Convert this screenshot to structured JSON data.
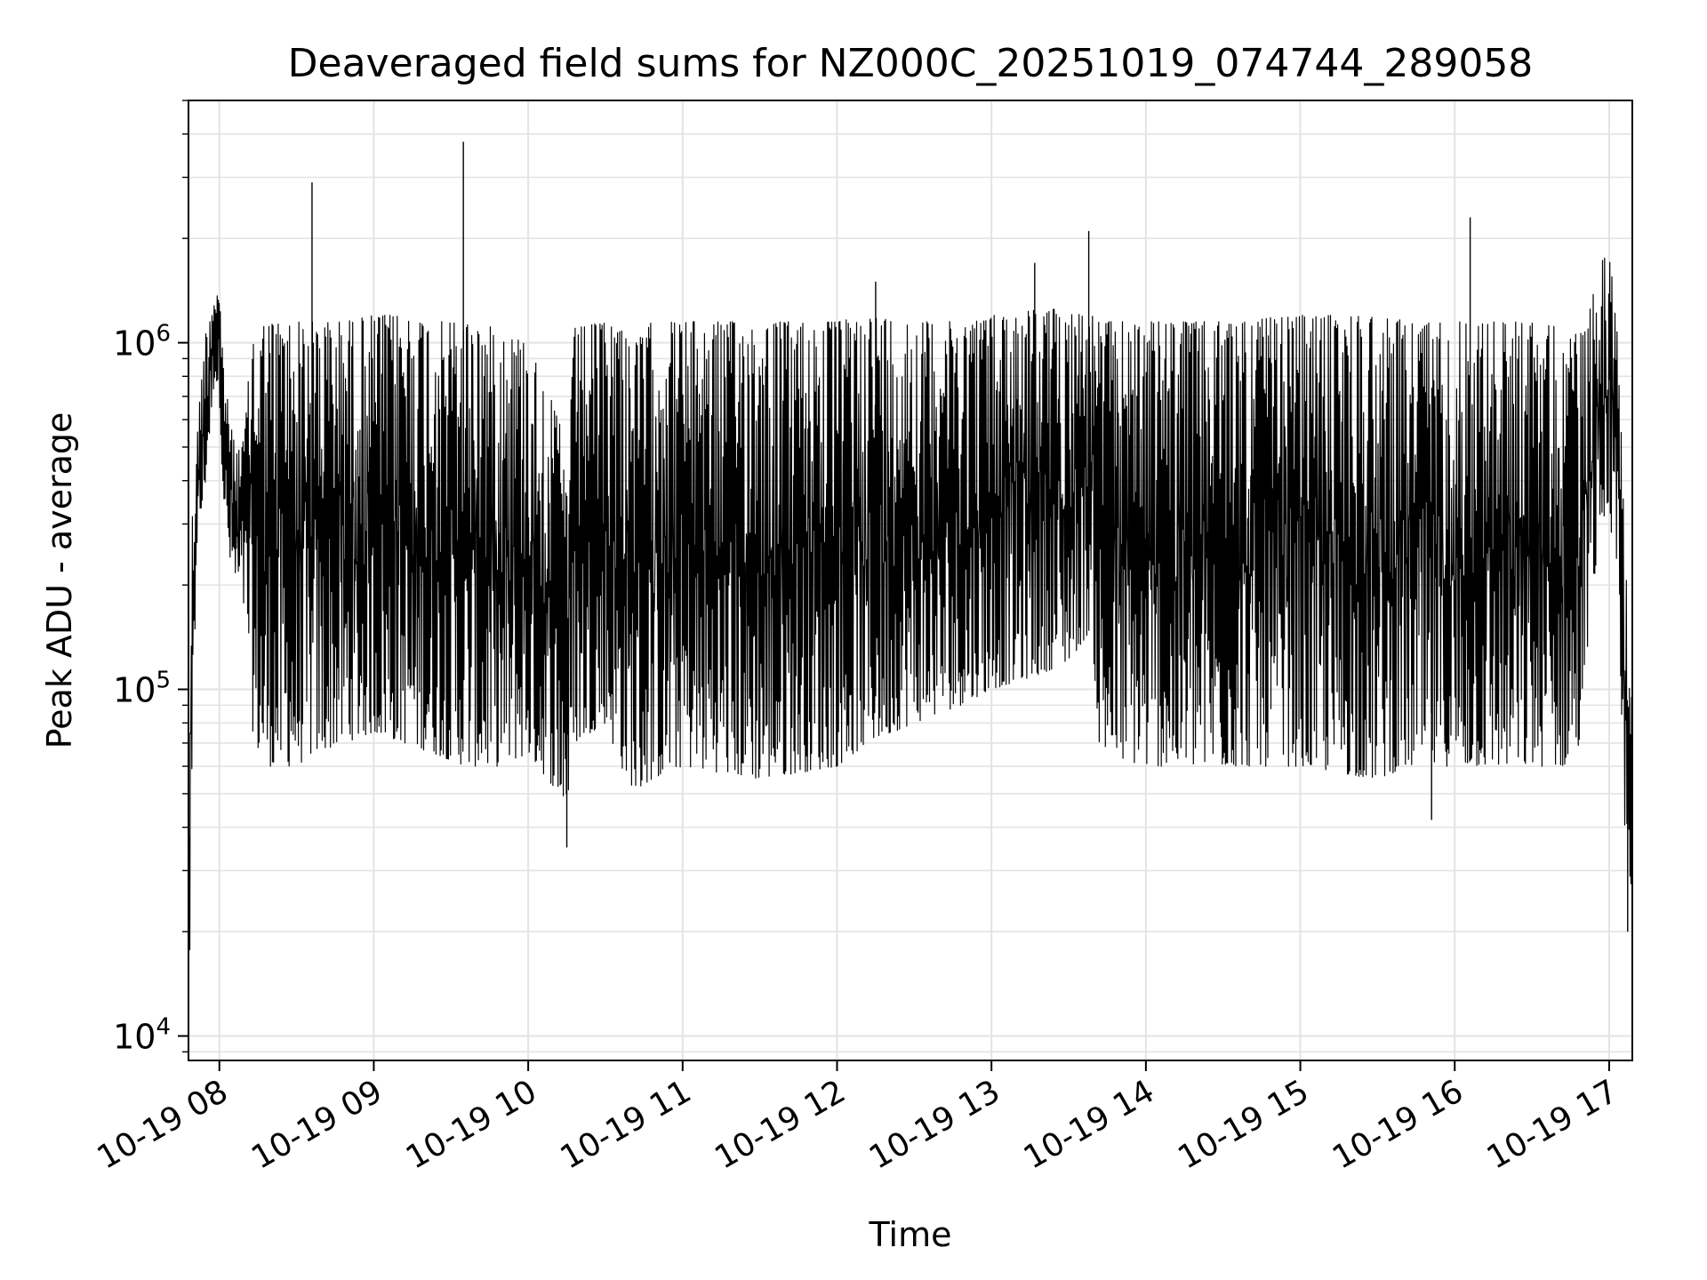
{
  "chart_data": {
    "type": "line",
    "title": "Deaveraged field sums for NZ000C_20251019_074744_289058",
    "xlabel": "Time",
    "ylabel": "Peak ADU - average",
    "yscale": "log",
    "ylim": [
      8500,
      5000000
    ],
    "xlim_hours": [
      7.8,
      17.15
    ],
    "grid": true,
    "line_color": "#000000",
    "grid_color": "#e3e3e3",
    "x_ticks": [
      {
        "hour": 8,
        "label": "10-19 08"
      },
      {
        "hour": 9,
        "label": "10-19 09"
      },
      {
        "hour": 10,
        "label": "10-19 10"
      },
      {
        "hour": 11,
        "label": "10-19 11"
      },
      {
        "hour": 12,
        "label": "10-19 12"
      },
      {
        "hour": 13,
        "label": "10-19 13"
      },
      {
        "hour": 14,
        "label": "10-19 14"
      },
      {
        "hour": 15,
        "label": "10-19 15"
      },
      {
        "hour": 16,
        "label": "10-19 16"
      },
      {
        "hour": 17,
        "label": "10-19 17"
      }
    ],
    "y_ticks": [
      {
        "value": 10000,
        "base": "10",
        "exp": "4"
      },
      {
        "value": 100000,
        "base": "10",
        "exp": "5"
      },
      {
        "value": 1000000,
        "base": "10",
        "exp": "6"
      }
    ],
    "series": [
      {
        "name": "field sums",
        "envelope_hours": [
          7.8,
          7.82,
          7.85,
          7.9,
          7.93,
          7.97,
          8.0,
          8.02,
          8.05,
          8.1,
          8.15,
          8.2,
          8.22,
          8.3,
          8.5,
          8.6,
          8.8,
          9.0,
          9.2,
          9.4,
          9.6,
          9.8,
          10.0,
          10.2,
          10.25,
          10.3,
          10.5,
          10.6,
          10.7,
          10.8,
          11.0,
          11.5,
          12.0,
          12.2,
          12.5,
          12.8,
          13.0,
          13.3,
          13.5,
          13.65,
          13.7,
          14.0,
          14.5,
          15.0,
          15.5,
          15.7,
          16.0,
          16.5,
          16.7,
          16.8,
          16.85,
          16.9,
          16.95,
          17.0,
          17.05,
          17.1,
          17.15
        ],
        "envelope_low": [
          11000,
          28000,
          250000,
          350000,
          500000,
          800000,
          700000,
          400000,
          250000,
          200000,
          180000,
          120000,
          70000,
          60000,
          60000,
          65000,
          70000,
          75000,
          70000,
          65000,
          60000,
          60000,
          65000,
          50000,
          45000,
          70000,
          80000,
          60000,
          50000,
          55000,
          60000,
          55000,
          60000,
          70000,
          80000,
          90000,
          100000,
          110000,
          120000,
          150000,
          65000,
          60000,
          60000,
          60000,
          55000,
          60000,
          60000,
          60000,
          60000,
          65000,
          120000,
          200000,
          300000,
          350000,
          150000,
          40000,
          25000
        ],
        "envelope_high": [
          30000,
          300000,
          500000,
          1000000,
          1200000,
          1500000,
          1400000,
          1000000,
          700000,
          500000,
          500000,
          900000,
          1100000,
          1150000,
          1150000,
          1150000,
          1150000,
          1200000,
          1200000,
          1150000,
          1150000,
          1100000,
          1000000,
          600000,
          400000,
          1100000,
          1150000,
          1150000,
          1000000,
          1150000,
          1150000,
          1150000,
          1150000,
          1200000,
          1150000,
          1150000,
          1200000,
          1250000,
          1250000,
          1200000,
          1150000,
          1150000,
          1150000,
          1200000,
          1200000,
          1150000,
          1150000,
          1150000,
          1100000,
          1050000,
          1100000,
          1400000,
          1700000,
          1900000,
          1200000,
          300000,
          100000
        ],
        "spikes": [
          {
            "hour": 8.6,
            "value": 2900000
          },
          {
            "hour": 9.58,
            "value": 3800000
          },
          {
            "hour": 13.63,
            "value": 2100000
          },
          {
            "hour": 16.1,
            "value": 2300000
          },
          {
            "hour": 12.25,
            "value": 1500000
          },
          {
            "hour": 13.28,
            "value": 1700000
          },
          {
            "hour": 10.25,
            "value": 35000
          },
          {
            "hour": 17.12,
            "value": 20000
          },
          {
            "hour": 15.85,
            "value": 42000
          }
        ],
        "oscillation_period_hours": 0.0067
      }
    ]
  }
}
